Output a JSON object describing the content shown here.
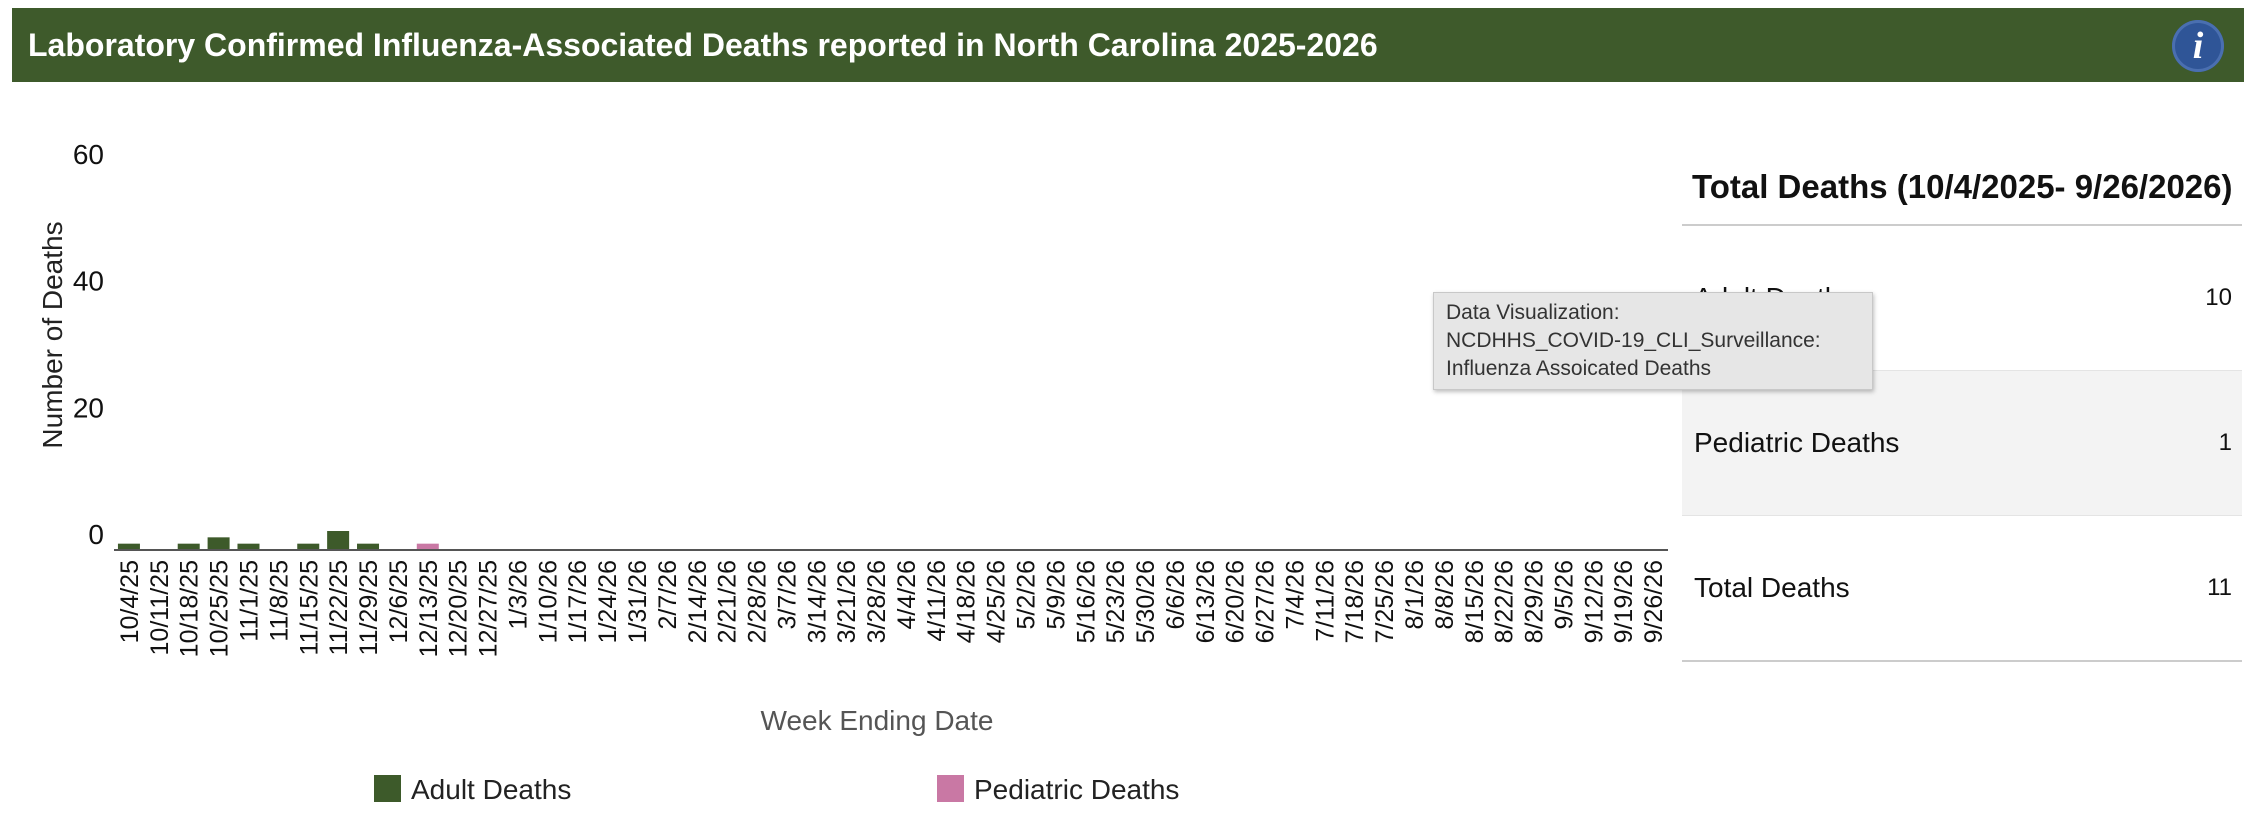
{
  "header": {
    "title": "Laboratory Confirmed Influenza-Associated Deaths reported in North Carolina 2025-2026",
    "info_glyph": "i"
  },
  "colors": {
    "header_bg": "#3e5a2b",
    "adult": "#3d5a2a",
    "pediatric": "#c978a4",
    "axis": "#555555",
    "info_button": "#2f5597"
  },
  "chart_data": {
    "type": "bar",
    "title": "Laboratory Confirmed Influenza-Associated Deaths reported in North Carolina 2025-2026",
    "xlabel": "Week Ending Date",
    "ylabel": "Number of Deaths",
    "ylim": [
      0,
      60
    ],
    "yticks": [
      0,
      20,
      40,
      60
    ],
    "grid": false,
    "legend_position": "bottom",
    "categories": [
      "10/4/25",
      "10/11/25",
      "10/18/25",
      "10/25/25",
      "11/1/25",
      "11/8/25",
      "11/15/25",
      "11/22/25",
      "11/29/25",
      "12/6/25",
      "12/13/25",
      "12/20/25",
      "12/27/25",
      "1/3/26",
      "1/10/26",
      "1/17/26",
      "1/24/26",
      "1/31/26",
      "2/7/26",
      "2/14/26",
      "2/21/26",
      "2/28/26",
      "3/7/26",
      "3/14/26",
      "3/21/26",
      "3/28/26",
      "4/4/26",
      "4/11/26",
      "4/18/26",
      "4/25/26",
      "5/2/26",
      "5/9/26",
      "5/16/26",
      "5/23/26",
      "5/30/26",
      "6/6/26",
      "6/13/26",
      "6/20/26",
      "6/27/26",
      "7/4/26",
      "7/11/26",
      "7/18/26",
      "7/25/26",
      "8/1/26",
      "8/8/26",
      "8/15/26",
      "8/22/26",
      "8/29/26",
      "9/5/26",
      "9/12/26",
      "9/19/26",
      "9/26/26"
    ],
    "series": [
      {
        "name": "Adult Deaths",
        "values": [
          1,
          0,
          1,
          2,
          1,
          0,
          1,
          3,
          1,
          0,
          0,
          0,
          0,
          0,
          0,
          0,
          0,
          0,
          0,
          0,
          0,
          0,
          0,
          0,
          0,
          0,
          0,
          0,
          0,
          0,
          0,
          0,
          0,
          0,
          0,
          0,
          0,
          0,
          0,
          0,
          0,
          0,
          0,
          0,
          0,
          0,
          0,
          0,
          0,
          0,
          0,
          0
        ]
      },
      {
        "name": "Pediatric Deaths",
        "values": [
          0,
          0,
          0,
          0,
          0,
          0,
          0,
          0,
          0,
          0,
          1,
          0,
          0,
          0,
          0,
          0,
          0,
          0,
          0,
          0,
          0,
          0,
          0,
          0,
          0,
          0,
          0,
          0,
          0,
          0,
          0,
          0,
          0,
          0,
          0,
          0,
          0,
          0,
          0,
          0,
          0,
          0,
          0,
          0,
          0,
          0,
          0,
          0,
          0,
          0,
          0,
          0
        ]
      }
    ]
  },
  "legend": {
    "adult_label": "Adult Deaths",
    "pediatric_label": "Pediatric Deaths"
  },
  "totals": {
    "title": "Total Deaths (10/4/2025- 9/26/2026)",
    "rows": [
      {
        "label": "Adult Deaths",
        "value": "10"
      },
      {
        "label": "Pediatric Deaths",
        "value": "1"
      },
      {
        "label": "Total Deaths",
        "value": "11"
      }
    ]
  },
  "tooltip": {
    "line1": "Data Visualization:",
    "line2": "NCDHHS_COVID-19_CLI_Surveillance:",
    "line3": "Influenza Assoicated Deaths"
  }
}
